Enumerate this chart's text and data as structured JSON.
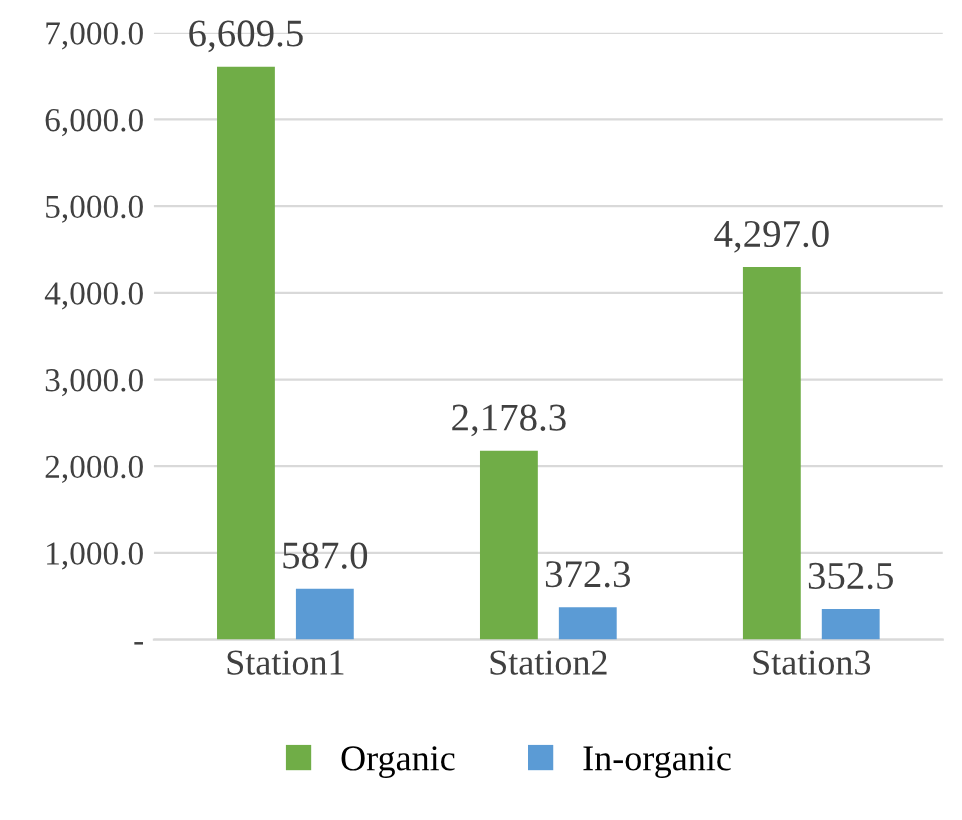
{
  "chart_data": {
    "type": "bar",
    "categories": [
      "Station1",
      "Station2",
      "Station3"
    ],
    "series": [
      {
        "name": "Organic",
        "color": "#70ad47",
        "values": [
          6609.5,
          2178.3,
          4297.0
        ],
        "value_labels": [
          "6,609.5",
          "2,178.3",
          "4,297.0"
        ]
      },
      {
        "name": "In-organic",
        "color": "#5b9bd5",
        "values": [
          587.0,
          372.3,
          352.5
        ],
        "value_labels": [
          "587.0",
          "372.3",
          "352.5"
        ]
      }
    ],
    "ylim": [
      0,
      7000
    ],
    "yticks": [
      {
        "value": 0,
        "label": "-"
      },
      {
        "value": 1000,
        "label": "1,000.0"
      },
      {
        "value": 2000,
        "label": "2,000.0"
      },
      {
        "value": 3000,
        "label": "3,000.0"
      },
      {
        "value": 4000,
        "label": "4,000.0"
      },
      {
        "value": 5000,
        "label": "5,000.0"
      },
      {
        "value": 6000,
        "label": "6,000.0"
      },
      {
        "value": 7000,
        "label": "7,000.0"
      }
    ],
    "grid": "y",
    "legend": "bottom"
  }
}
